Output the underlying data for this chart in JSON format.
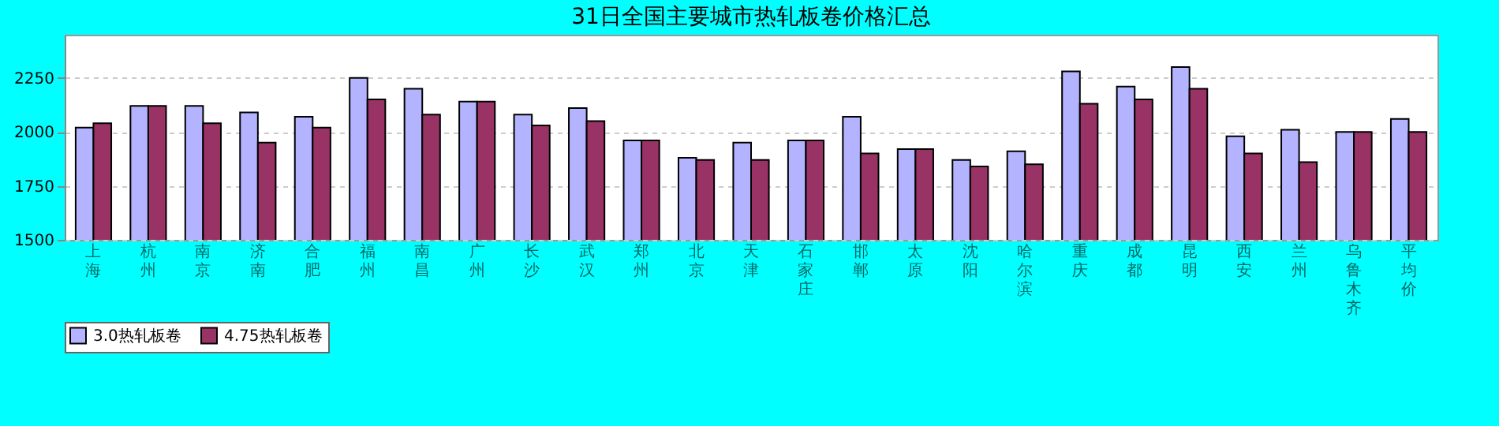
{
  "chart_data": {
    "type": "bar",
    "title": "31日全国主要城市热轧板卷价格汇总",
    "categories": [
      "上海",
      "杭州",
      "南京",
      "济南",
      "合肥",
      "福州",
      "南昌",
      "广州",
      "长沙",
      "武汉",
      "郑州",
      "北京",
      "天津",
      "石家庄",
      "邯郸",
      "太原",
      "沈阳",
      "哈尔滨",
      "重庆",
      "成都",
      "昆明",
      "西安",
      "兰州",
      "乌鲁木齐",
      "平均价"
    ],
    "series": [
      {
        "name": "3.0热轧板卷",
        "color": "#b3b3ff",
        "values": [
          2020,
          2120,
          2120,
          2090,
          2070,
          2250,
          2200,
          2140,
          2080,
          2110,
          1960,
          1880,
          1950,
          1960,
          2070,
          1920,
          1870,
          1910,
          2280,
          2210,
          2300,
          1980,
          2010,
          2000,
          2060
        ]
      },
      {
        "name": "4.75热轧板卷",
        "color": "#993366",
        "values": [
          2040,
          2120,
          2040,
          1950,
          2020,
          2150,
          2080,
          2140,
          2030,
          2050,
          1960,
          1870,
          1870,
          1960,
          1900,
          1920,
          1840,
          1850,
          2130,
          2150,
          2200,
          1900,
          1860,
          2000,
          2000
        ]
      }
    ],
    "ylim": [
      1500,
      2450
    ],
    "yticks": [
      1500,
      1750,
      2000,
      2250
    ],
    "grid": "y",
    "legend": "bottom"
  }
}
